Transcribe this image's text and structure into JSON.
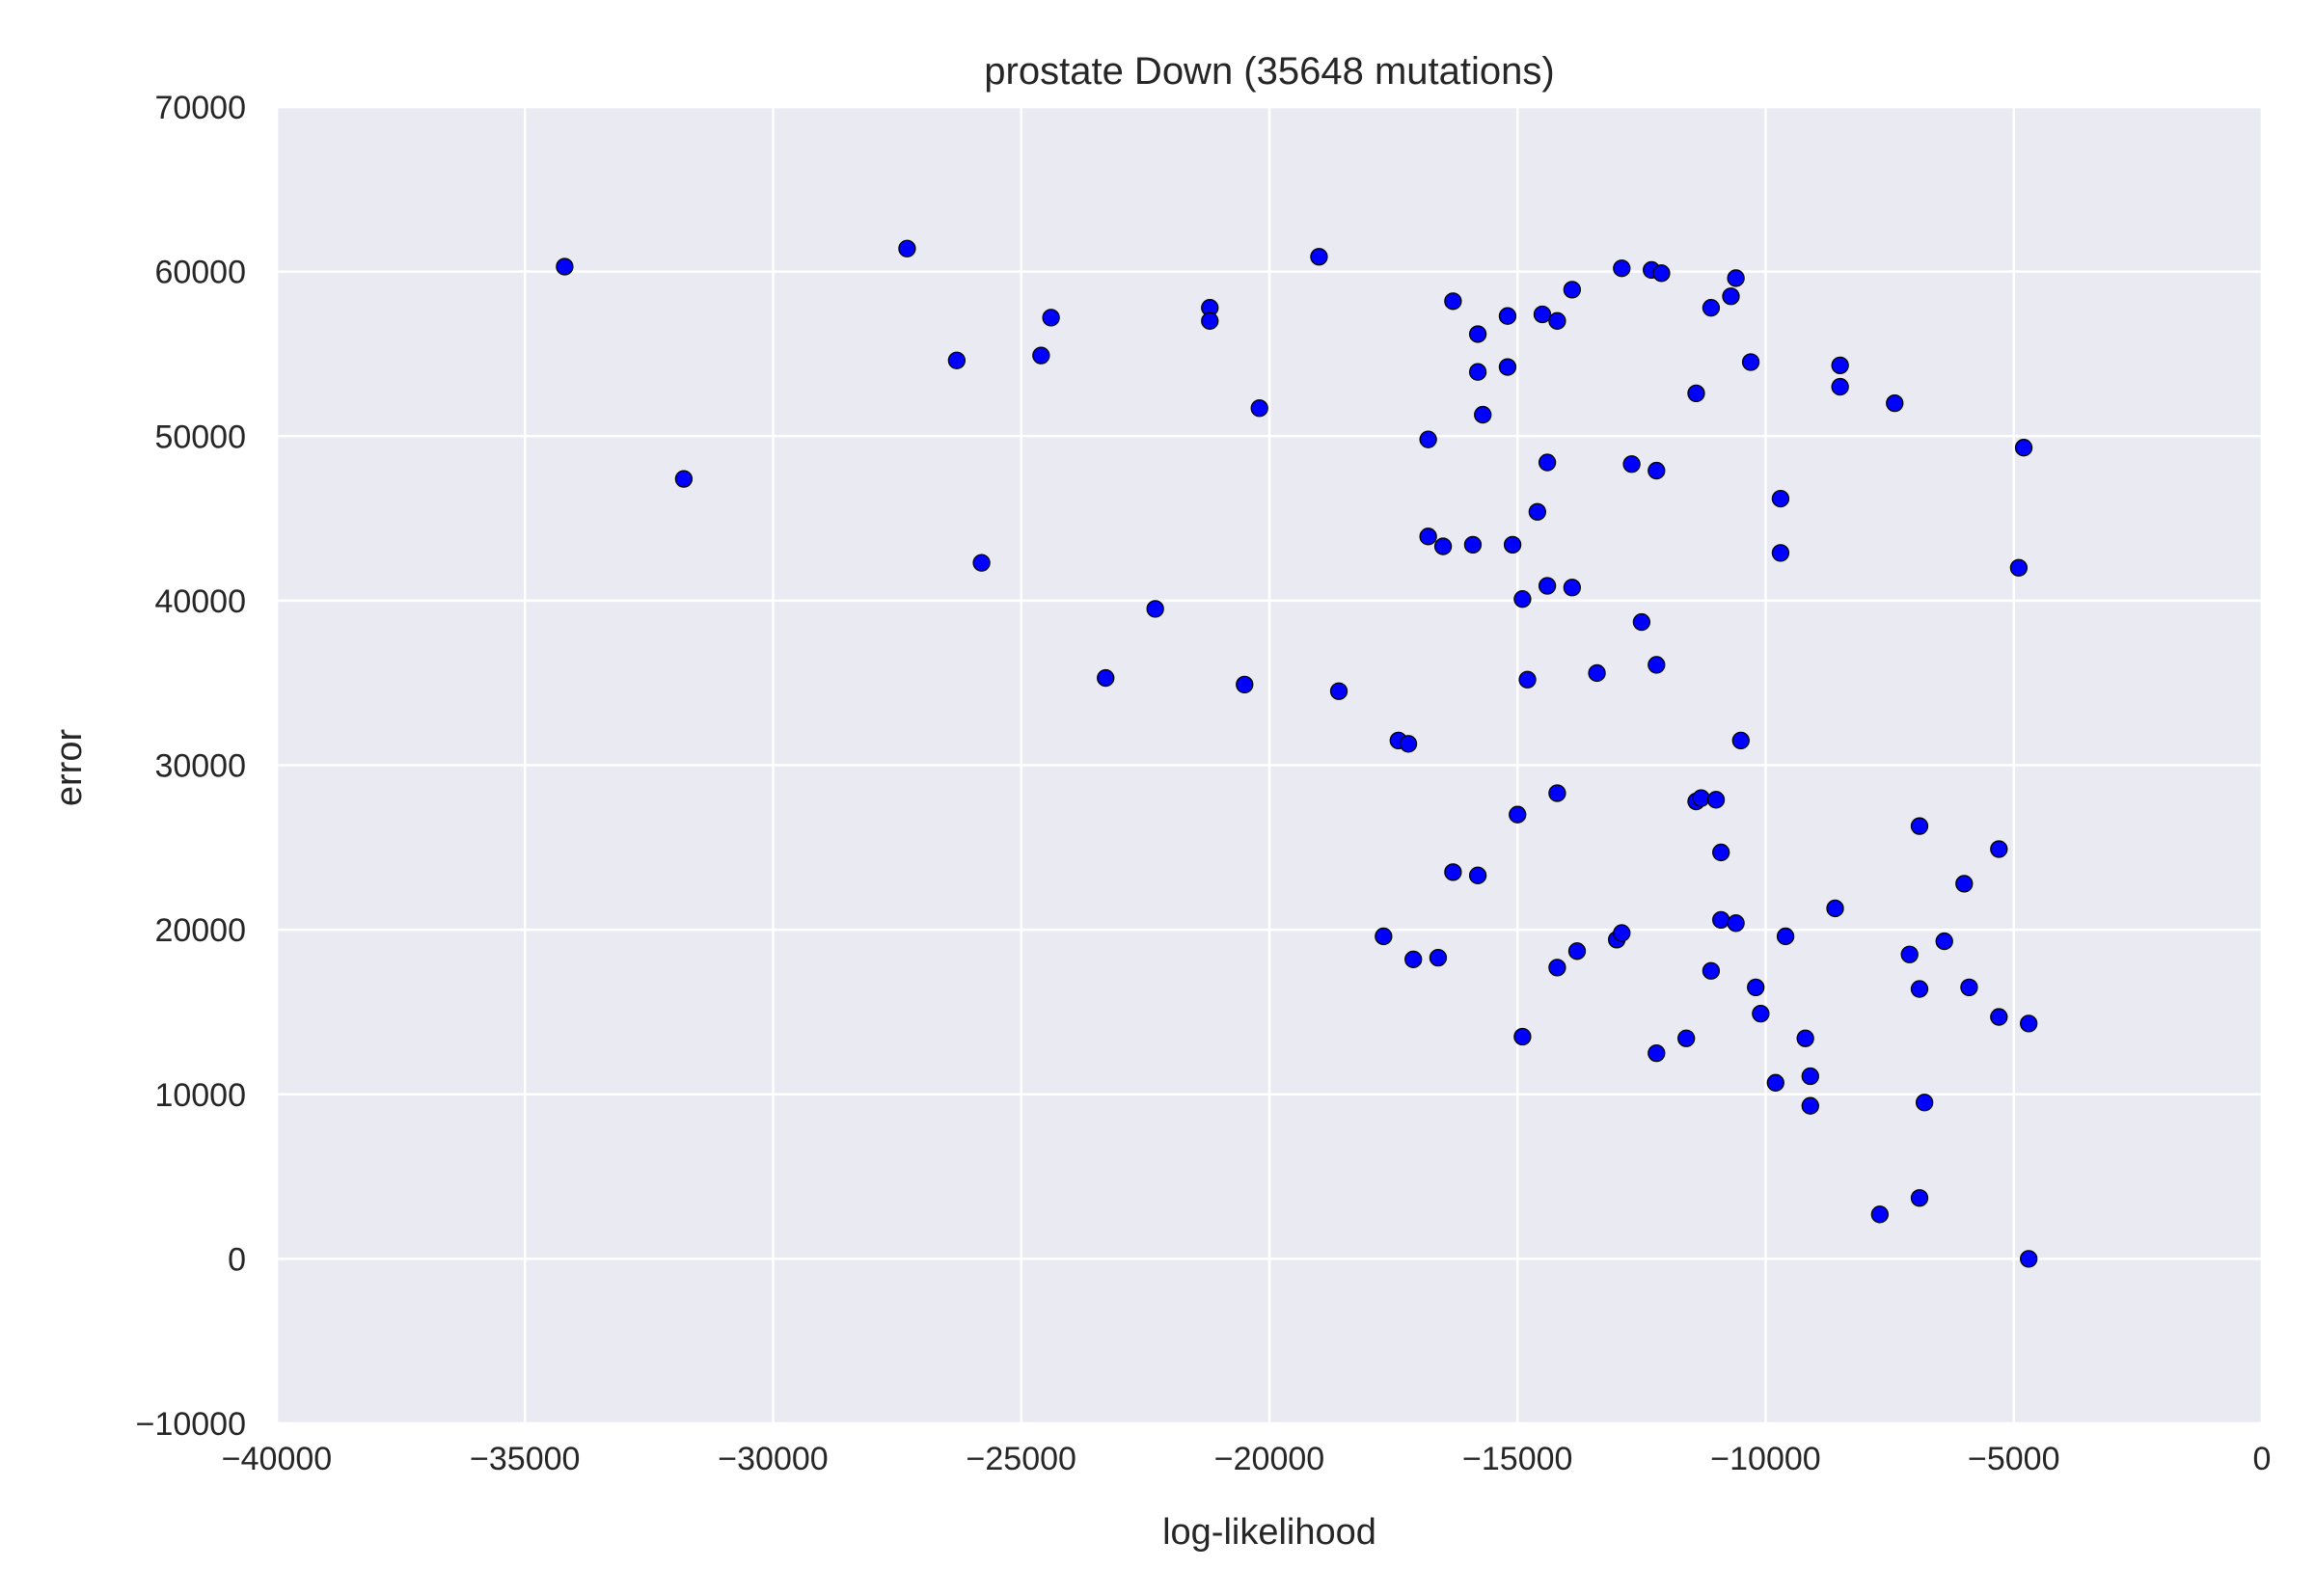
{
  "chart_data": {
    "type": "scatter",
    "title": "prostate Down (35648 mutations)",
    "xlabel": "log-likelihood",
    "ylabel": "error",
    "xlim": [
      -40000,
      0
    ],
    "ylim": [
      -10000,
      70000
    ],
    "xticks": [
      -40000,
      -35000,
      -30000,
      -25000,
      -20000,
      -15000,
      -10000,
      -5000,
      0
    ],
    "xtick_labels": [
      "−40000",
      "−35000",
      "−30000",
      "−25000",
      "−20000",
      "−15000",
      "−10000",
      "−5000",
      "0"
    ],
    "yticks": [
      -10000,
      0,
      10000,
      20000,
      30000,
      40000,
      50000,
      60000,
      70000
    ],
    "ytick_labels": [
      "−10000",
      "0",
      "10000",
      "20000",
      "30000",
      "40000",
      "50000",
      "60000",
      "70000"
    ],
    "grid": true,
    "colors": {
      "background": "#eaeaf2",
      "grid": "#ffffff",
      "marker": "#0000ff",
      "marker_edge": "#000000"
    },
    "points": [
      [
        -34200,
        60300
      ],
      [
        -31800,
        47400
      ],
      [
        -27300,
        61400
      ],
      [
        -26300,
        54600
      ],
      [
        -25800,
        42300
      ],
      [
        -24600,
        54900
      ],
      [
        -24400,
        57200
      ],
      [
        -23300,
        35300
      ],
      [
        -22300,
        39500
      ],
      [
        -21200,
        57800
      ],
      [
        -21200,
        57000
      ],
      [
        -20500,
        34900
      ],
      [
        -20200,
        51700
      ],
      [
        -19000,
        60900
      ],
      [
        -18600,
        34500
      ],
      [
        -17700,
        19600
      ],
      [
        -17400,
        31500
      ],
      [
        -17200,
        31300
      ],
      [
        -17100,
        18200
      ],
      [
        -16800,
        49800
      ],
      [
        -16800,
        43900
      ],
      [
        -16600,
        18300
      ],
      [
        -16500,
        43300
      ],
      [
        -16300,
        58200
      ],
      [
        -16300,
        23500
      ],
      [
        -15900,
        43400
      ],
      [
        -15800,
        56200
      ],
      [
        -15800,
        53900
      ],
      [
        -15800,
        23300
      ],
      [
        -15700,
        51300
      ],
      [
        -15200,
        57300
      ],
      [
        -15200,
        54200
      ],
      [
        -15100,
        43400
      ],
      [
        -15000,
        27000
      ],
      [
        -14900,
        40100
      ],
      [
        -14900,
        13500
      ],
      [
        -14800,
        35200
      ],
      [
        -14600,
        45400
      ],
      [
        -14500,
        57400
      ],
      [
        -14400,
        48400
      ],
      [
        -14400,
        40900
      ],
      [
        -14200,
        57000
      ],
      [
        -14200,
        28300
      ],
      [
        -14200,
        17700
      ],
      [
        -13900,
        58900
      ],
      [
        -13900,
        40800
      ],
      [
        -13800,
        18700
      ],
      [
        -13400,
        35600
      ],
      [
        -13000,
        19400
      ],
      [
        -12900,
        60200
      ],
      [
        -12900,
        19800
      ],
      [
        -12700,
        48300
      ],
      [
        -12500,
        38700
      ],
      [
        -12300,
        60100
      ],
      [
        -12200,
        47900
      ],
      [
        -12200,
        36100
      ],
      [
        -12200,
        12500
      ],
      [
        -12100,
        59900
      ],
      [
        -11600,
        13400
      ],
      [
        -11400,
        52600
      ],
      [
        -11400,
        27800
      ],
      [
        -11300,
        28000
      ],
      [
        -11100,
        57800
      ],
      [
        -11100,
        17500
      ],
      [
        -11000,
        27900
      ],
      [
        -10900,
        24700
      ],
      [
        -10900,
        20600
      ],
      [
        -10700,
        58500
      ],
      [
        -10600,
        59600
      ],
      [
        -10600,
        20400
      ],
      [
        -10500,
        31500
      ],
      [
        -10300,
        54500
      ],
      [
        -10200,
        16500
      ],
      [
        -10100,
        14900
      ],
      [
        -9800,
        10700
      ],
      [
        -9700,
        46200
      ],
      [
        -9700,
        42900
      ],
      [
        -9600,
        19600
      ],
      [
        -9200,
        13400
      ],
      [
        -9100,
        11100
      ],
      [
        -9100,
        9300
      ],
      [
        -8600,
        21300
      ],
      [
        -8500,
        54300
      ],
      [
        -8500,
        53000
      ],
      [
        -7700,
        2700
      ],
      [
        -7400,
        52000
      ],
      [
        -7100,
        18500
      ],
      [
        -6900,
        26300
      ],
      [
        -6900,
        16400
      ],
      [
        -6900,
        3700
      ],
      [
        -6800,
        9500
      ],
      [
        -6400,
        19300
      ],
      [
        -6000,
        22800
      ],
      [
        -5900,
        16500
      ],
      [
        -5300,
        24900
      ],
      [
        -5300,
        14700
      ],
      [
        -4900,
        42000
      ],
      [
        -4800,
        49300
      ],
      [
        -4700,
        14300
      ],
      [
        -4700,
        0
      ]
    ]
  }
}
